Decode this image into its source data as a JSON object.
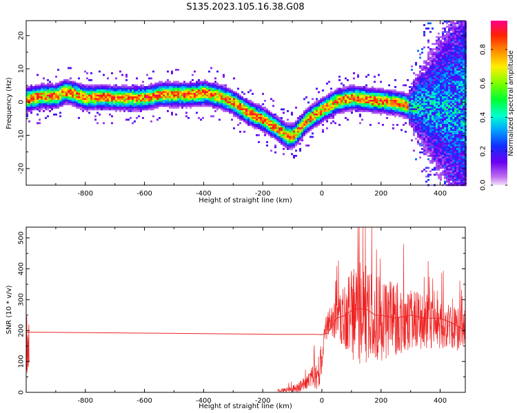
{
  "figure_title": "S135.2023.105.16.38.G08",
  "chart_data": [
    {
      "type": "heatmap",
      "title": "",
      "xlabel": "Height of straight line (km)",
      "ylabel": "Frequency (Hz)",
      "xlim": [
        -1000,
        485
      ],
      "ylim": [
        -25,
        24.5
      ],
      "xticks": [
        -800,
        -600,
        -400,
        -200,
        0,
        200,
        400
      ],
      "yticks": [
        -20,
        -10,
        0,
        10,
        20
      ],
      "colorbar": {
        "label": "Normalized spectral amplitude",
        "range": [
          0,
          0.97
        ],
        "ticks": [
          0.0,
          0.2,
          0.4,
          0.6,
          0.8
        ],
        "tick_labels": [
          "0.0",
          "0.2",
          "0.4",
          "0.6",
          "0.8"
        ],
        "colormap": "gist_rainbow_r (magenta-purple low, red high)"
      },
      "ridge": {
        "x": [
          -1000,
          -950,
          -900,
          -870,
          -850,
          -800,
          -750,
          -700,
          -650,
          -600,
          -550,
          -500,
          -450,
          -400,
          -350,
          -300,
          -250,
          -200,
          -150,
          -120,
          -100,
          -80,
          -50,
          0,
          50,
          100,
          150,
          200,
          250,
          290
        ],
        "frequency": [
          1.0,
          2.0,
          2.0,
          3.5,
          3.0,
          1.5,
          1.8,
          1.5,
          1.5,
          1.5,
          2.5,
          2.5,
          2.5,
          3.0,
          2.0,
          0.0,
          -3.0,
          -5.0,
          -8.0,
          -10.0,
          -10.0,
          -8.0,
          -5.0,
          -2.0,
          0.5,
          1.5,
          1.0,
          0.5,
          0.0,
          -1.0
        ]
      },
      "noisy_region_start": 290
    },
    {
      "type": "line",
      "title": "",
      "xlabel": "Height of straight line (km)",
      "ylabel": "SNR (10 * v/v)",
      "xlim": [
        -1000,
        485
      ],
      "ylim": [
        0,
        535
      ],
      "xticks": [
        -800,
        -600,
        -400,
        -200,
        0,
        200,
        400
      ],
      "yticks": [
        0,
        100,
        200,
        300,
        400,
        500
      ],
      "color": "#ee2222",
      "series": [
        {
          "x": [
            -1000,
            -150,
            -100,
            -50,
            -20,
            0,
            20,
            50,
            80,
            100,
            120,
            150,
            180,
            200,
            250,
            300,
            350,
            400,
            450,
            485
          ],
          "y": [
            195,
            188,
            188,
            188,
            188,
            187,
            192,
            240,
            250,
            265,
            270,
            270,
            250,
            250,
            240,
            250,
            240,
            240,
            220,
            200
          ]
        }
      ],
      "noise": {
        "x": [
          -150,
          -120,
          -80,
          -40,
          -10,
          0,
          10,
          30,
          50,
          80,
          100,
          130,
          150,
          180,
          200,
          250,
          300,
          350,
          400,
          450,
          485
        ],
        "mean": [
          5,
          8,
          15,
          40,
          70,
          130,
          200,
          230,
          240,
          250,
          250,
          260,
          255,
          250,
          240,
          240,
          230,
          230,
          220,
          210,
          200
        ],
        "amp": [
          5,
          8,
          15,
          30,
          60,
          60,
          40,
          50,
          70,
          110,
          150,
          170,
          160,
          150,
          140,
          120,
          100,
          90,
          80,
          70,
          80
        ]
      }
    }
  ]
}
